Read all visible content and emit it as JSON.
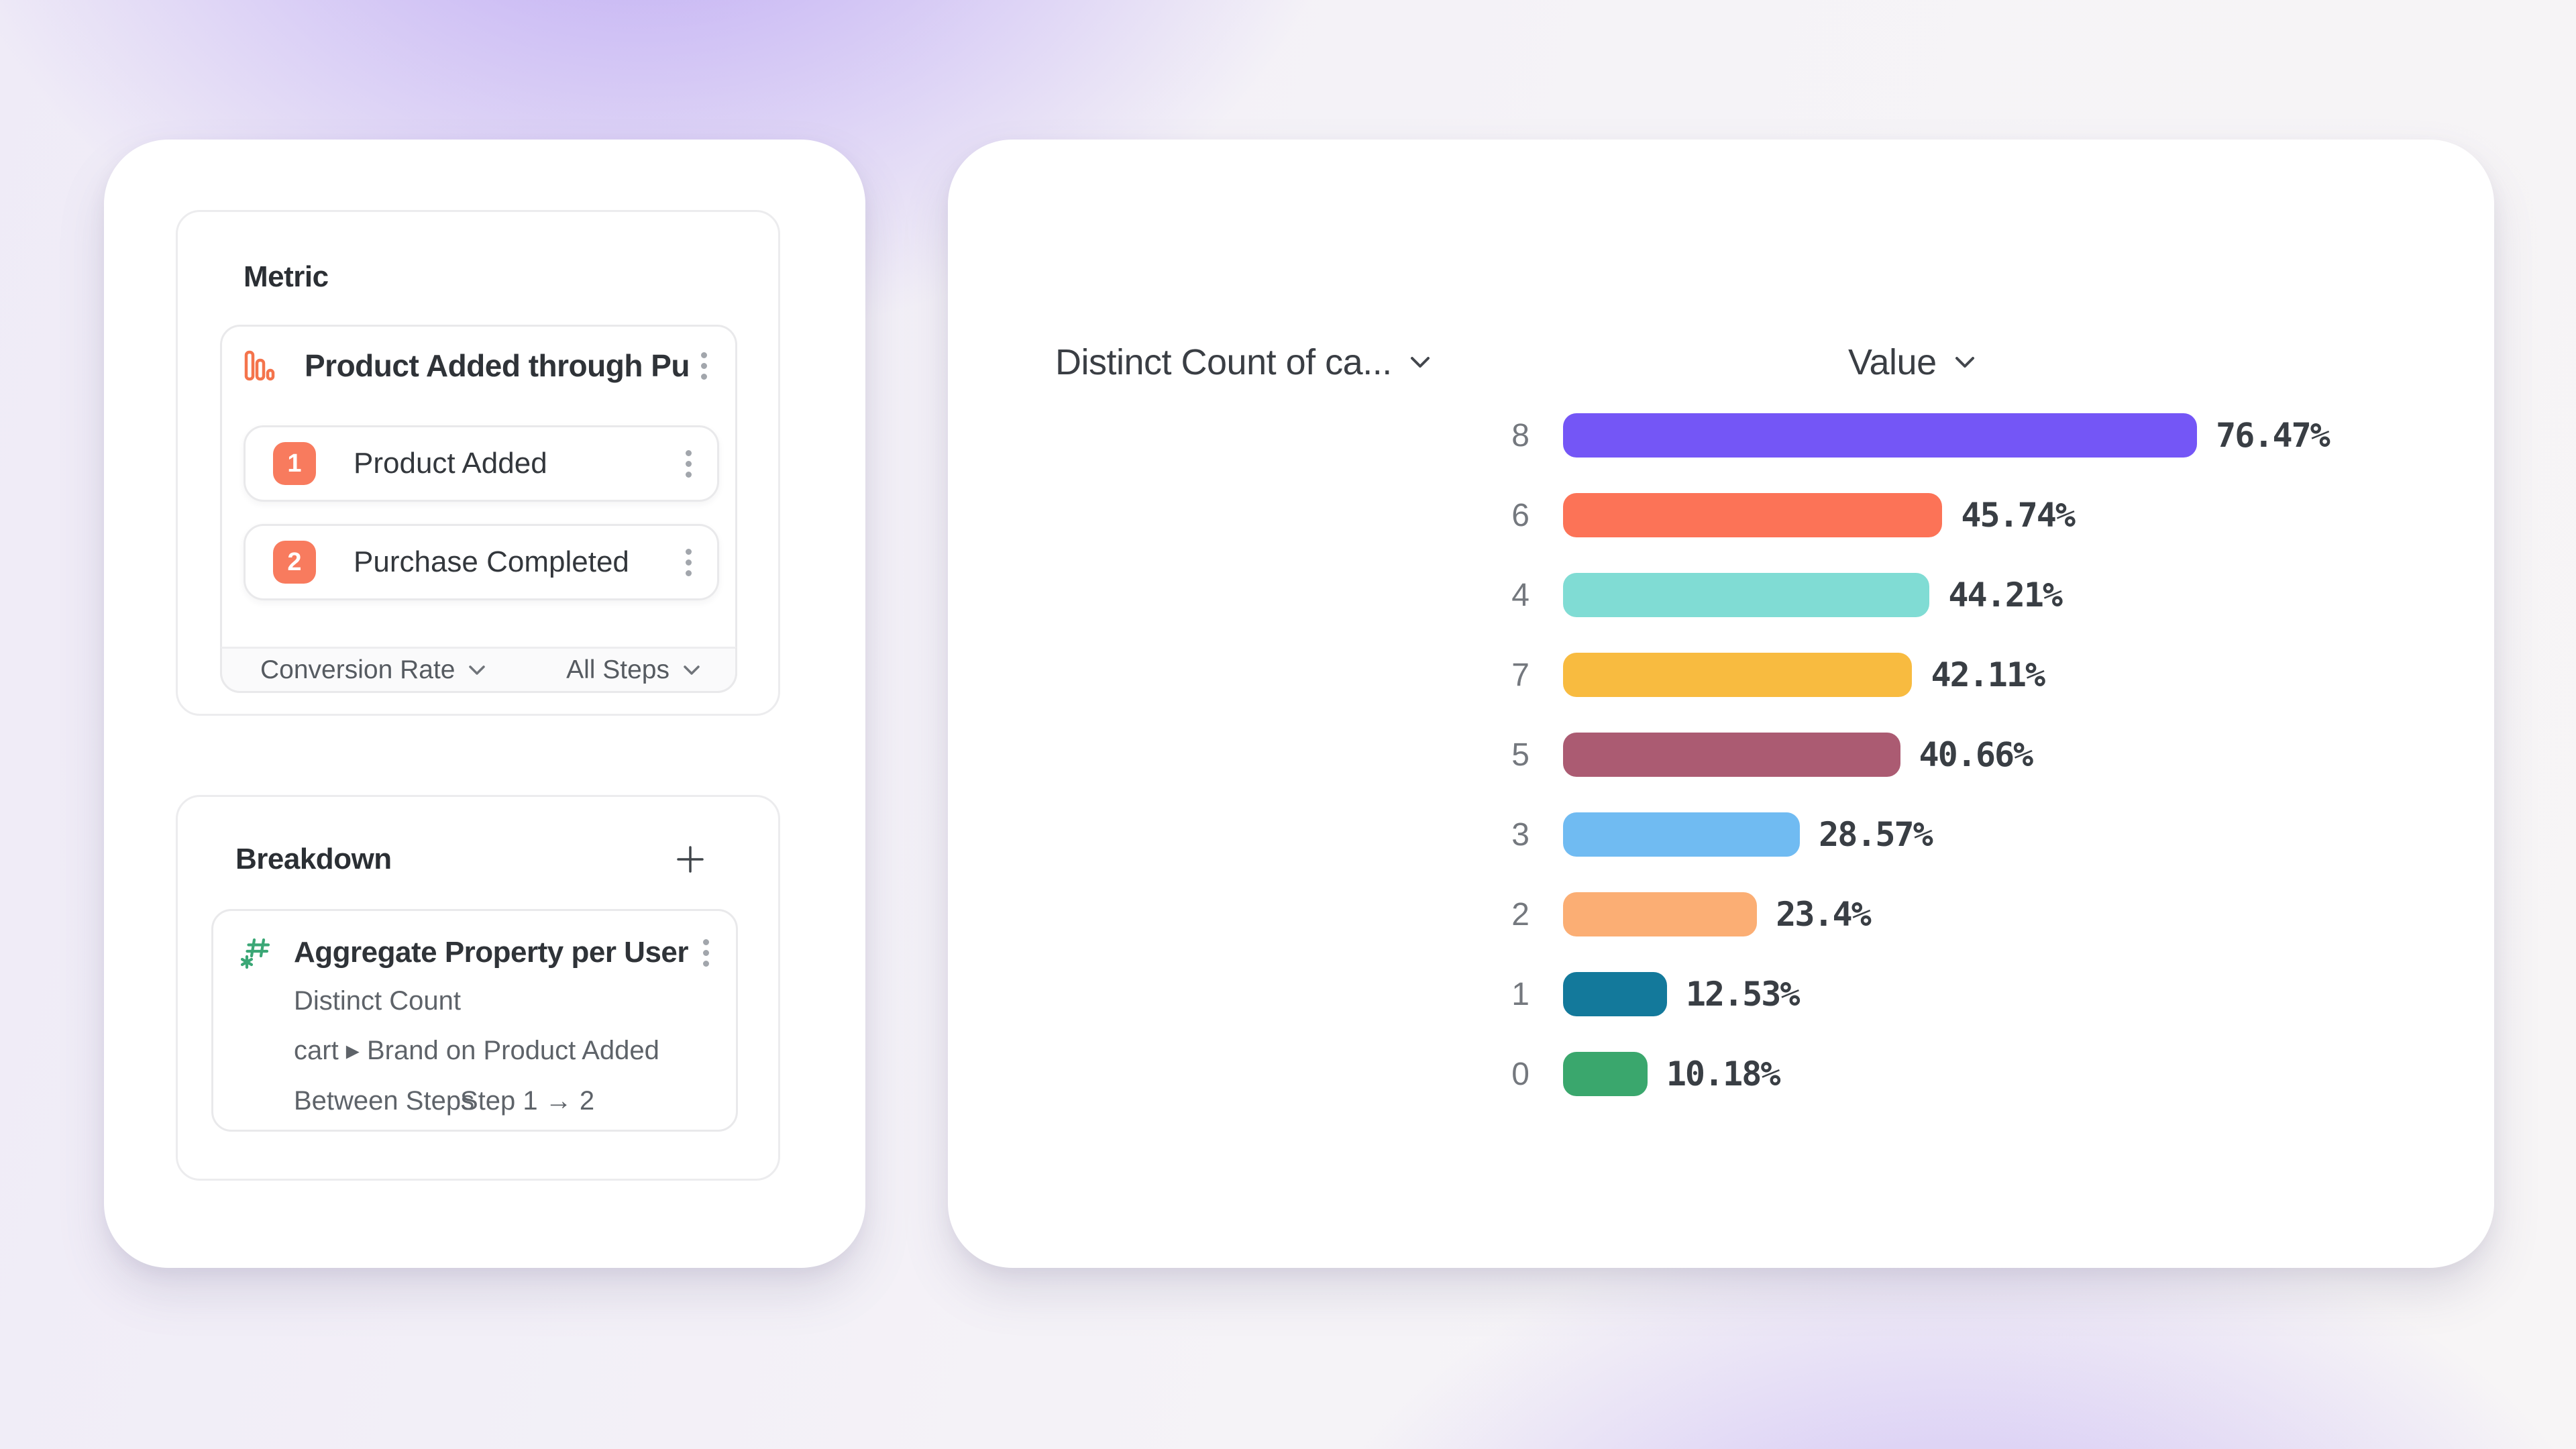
{
  "theme": {
    "accent_coral": "#F87B5E",
    "funnel_icon_coral": "#F4744C",
    "hash_icon_green": "#3BA776",
    "background_purple": "#A78BEF",
    "text_dark": "#2F3338",
    "text_medium": "#5E6369",
    "kebab_gray": "#A2A6AC"
  },
  "metric_section": {
    "title": "Metric",
    "funnel": {
      "title": "Product Added through Purcha...",
      "steps": [
        {
          "number": "1",
          "label": "Product Added"
        },
        {
          "number": "2",
          "label": "Purchase Completed"
        }
      ],
      "measured_as_label": "Conversion Rate",
      "steps_scope_label": "All Steps"
    }
  },
  "breakdown_section": {
    "title": "Breakdown",
    "property": {
      "title": "Aggregate Property per User",
      "aggregation": "Distinct Count",
      "property_path": "cart ▸ Brand on Product Added",
      "scope_label": "Between Steps",
      "scope_value": "Step 1 → 2"
    }
  },
  "chart": {
    "category_column_label": "Distinct Count of ca...",
    "value_column_label": "Value"
  },
  "chart_data": {
    "type": "bar",
    "orientation": "horizontal",
    "column_headers": [
      "Distinct Count of ca...",
      "Value"
    ],
    "categories": [
      "8",
      "6",
      "4",
      "7",
      "5",
      "3",
      "2",
      "1",
      "0"
    ],
    "values": [
      76.47,
      45.74,
      44.21,
      42.11,
      40.66,
      28.57,
      23.4,
      12.53,
      10.18
    ],
    "value_labels": [
      "76.47%",
      "45.74%",
      "44.21%",
      "42.11%",
      "40.66%",
      "28.57%",
      "23.4%",
      "12.53%",
      "10.18%"
    ],
    "bar_colors": [
      "#7456F6",
      "#FC7357",
      "#80DCD4",
      "#F8BB40",
      "#AB5B72",
      "#70BBF2",
      "#FBAE74",
      "#13799B",
      "#3AA76D"
    ],
    "xlim": [
      0,
      100
    ],
    "unit": "%",
    "sort": "descending",
    "grid": false,
    "legend": false
  }
}
